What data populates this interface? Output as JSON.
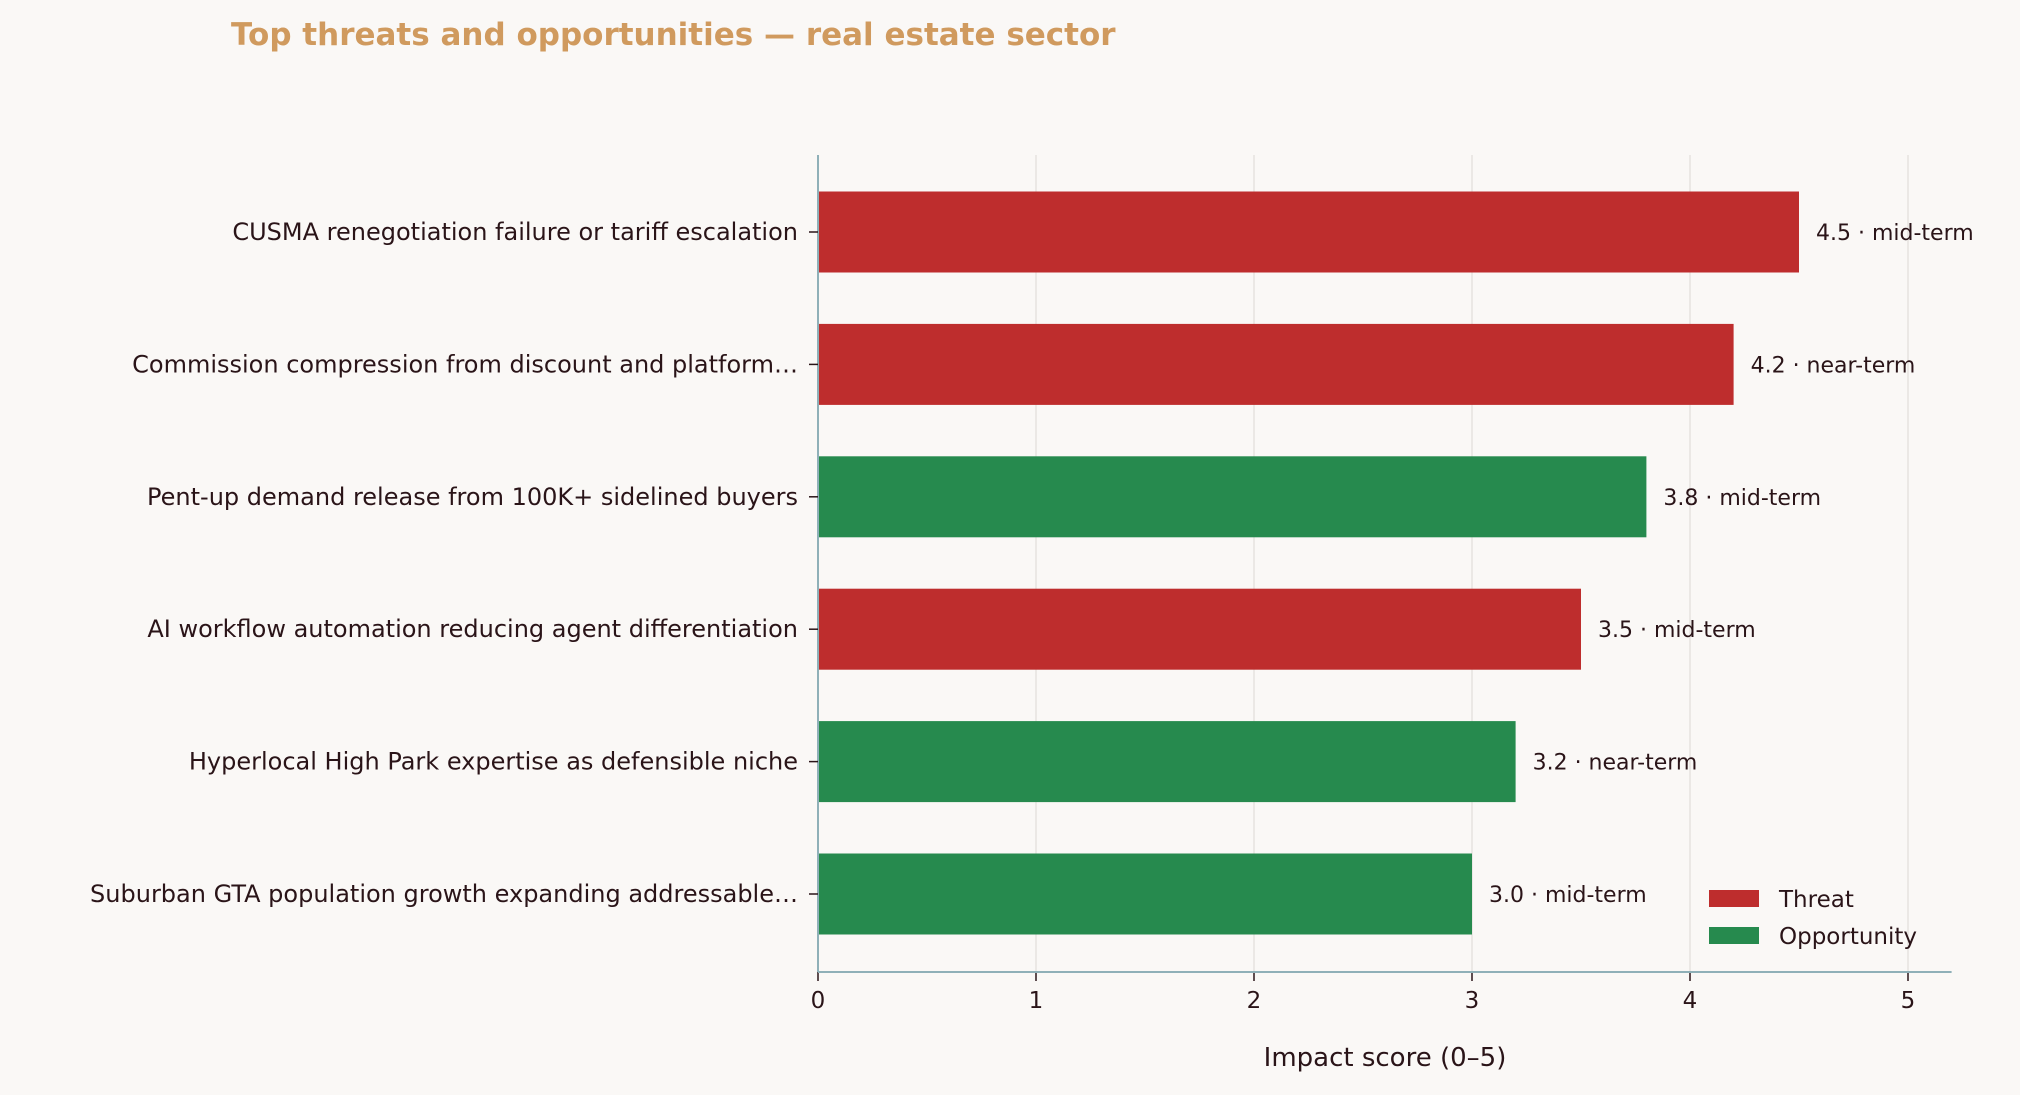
{
  "chart_data": {
    "type": "bar",
    "orientation": "horizontal",
    "title": "Top threats and opportunities — real estate sector",
    "xlabel": "Impact score (0–5)",
    "ylabel": "",
    "xlim": [
      0,
      5.2
    ],
    "xticks": [
      "0",
      "1",
      "2",
      "3",
      "4",
      "5"
    ],
    "grid": "vertical",
    "legend_placement": "bottom-right",
    "colors": {
      "Threat": "#be2d2d",
      "Opportunity": "#268a4e",
      "axis": "#8fb0b8"
    },
    "legend": [
      {
        "name": "Threat",
        "color": "#be2d2d"
      },
      {
        "name": "Opportunity",
        "color": "#268a4e"
      }
    ],
    "bars": [
      {
        "label": "CUSMA renegotiation failure or tariff escalation",
        "value": 4.5,
        "kind": "Threat",
        "data_label": "4.5  ·  mid-term"
      },
      {
        "label": "Commission compression from discount and platform…",
        "value": 4.2,
        "kind": "Threat",
        "data_label": "4.2  ·  near-term"
      },
      {
        "label": "Pent-up demand release from 100K+ sidelined buyers",
        "value": 3.8,
        "kind": "Opportunity",
        "data_label": "3.8  ·  mid-term"
      },
      {
        "label": "AI workflow automation reducing agent differentiation",
        "value": 3.5,
        "kind": "Threat",
        "data_label": "3.5  ·  mid-term"
      },
      {
        "label": "Hyperlocal High Park expertise as defensible niche",
        "value": 3.2,
        "kind": "Opportunity",
        "data_label": "3.2  ·  near-term"
      },
      {
        "label": "Suburban GTA population growth expanding addressable…",
        "value": 3.0,
        "kind": "Opportunity",
        "data_label": "3.0  ·  mid-term"
      }
    ]
  }
}
